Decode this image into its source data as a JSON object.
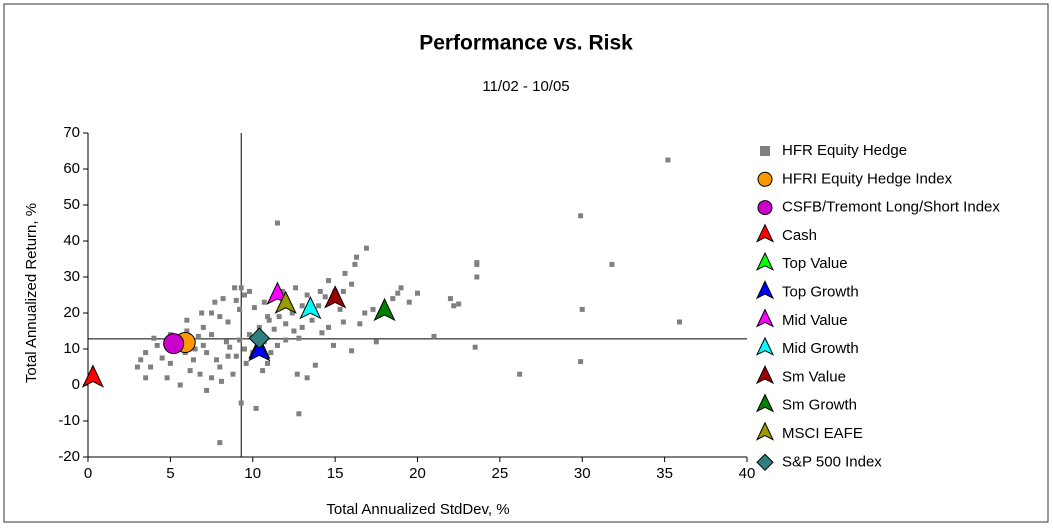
{
  "chart_data": {
    "type": "scatter",
    "title": "Performance vs. Risk",
    "subtitle": "11/02 - 10/05",
    "x_label": "Total Annualized StdDev, %",
    "y_label": "Total Annualized Return, %",
    "xlim": [
      0,
      40
    ],
    "xticks": [
      0,
      5,
      10,
      15,
      20,
      25,
      30,
      35,
      40
    ],
    "ylim": [
      -20,
      70
    ],
    "yticks": [
      -20,
      -10,
      0,
      10,
      20,
      30,
      40,
      50,
      60,
      70
    ],
    "reference_lines": {
      "x": 9.3,
      "y": 12.8
    },
    "legend": "right",
    "series": [
      {
        "name": "HFR Equity Hedge",
        "color": "#808080",
        "marker": "square",
        "x": [
          35.2,
          35.9,
          29.9,
          30,
          29.9,
          31.8,
          26.2,
          23.6,
          23.6,
          23.6,
          23.5,
          22.5,
          22,
          22.2,
          21,
          20,
          19,
          18.8,
          16.9,
          16.3,
          16.2,
          11.5,
          12.8,
          10.2,
          8,
          9.3,
          7.2,
          10.9,
          13.8,
          13.3,
          12.7,
          14,
          15.5,
          16.5,
          17.5,
          16,
          14.9,
          15,
          15.5,
          14.4,
          9,
          9.5,
          9.3,
          8.9,
          9.8,
          10.1,
          11,
          12,
          12.5,
          13,
          12.8,
          11.3,
          10.7,
          11.5,
          8,
          8.5,
          7.5,
          8.4,
          7,
          6.5,
          6,
          5,
          4,
          3.5,
          3.2,
          3,
          3.5,
          4.5,
          5,
          4.8,
          5.6,
          6.2,
          6.8,
          7.5,
          8,
          8.5,
          9,
          9.5,
          10,
          8.2,
          7.5,
          7,
          6.7,
          7.2,
          7.8,
          8.6,
          9.2,
          9.8,
          10.4,
          10.9,
          11.6,
          12.4,
          13,
          13.3,
          14.1,
          14.6,
          15.6,
          16,
          13.6,
          14.2,
          14.6,
          12,
          11.1,
          10.6,
          9.6,
          8.8,
          8.1,
          6.4,
          5.9,
          5.4,
          4.2,
          3.8,
          6,
          6.9,
          7.7,
          9.2,
          10.7,
          11.8,
          12.6,
          16.8,
          17.3,
          18.5,
          19.5,
          15.3
        ],
        "values": [
          62.5,
          17.5,
          47,
          21,
          6.5,
          33.5,
          3,
          33.5,
          34,
          30,
          10.5,
          22.5,
          24,
          22,
          13.5,
          25.5,
          27,
          25.5,
          38,
          35.5,
          33.5,
          45,
          -8,
          -6.5,
          -16,
          -5,
          -1.5,
          6,
          5.5,
          2,
          3,
          22,
          17.5,
          17,
          12,
          9.5,
          11,
          26,
          26,
          24.5,
          23.5,
          25,
          27,
          27,
          26,
          21.5,
          18,
          17,
          15,
          16,
          13,
          15.5,
          12,
          11,
          19,
          17.5,
          14,
          12,
          11,
          10,
          15,
          14,
          13,
          9,
          7,
          5,
          2,
          7.5,
          6,
          2,
          0,
          4,
          3,
          2,
          5,
          8,
          8,
          10,
          9,
          24,
          20,
          16,
          13.5,
          9,
          7,
          10.5,
          12.5,
          14,
          16,
          19,
          19,
          20,
          22,
          25,
          26,
          29,
          31,
          28,
          18,
          14.5,
          16,
          12.5,
          9,
          4,
          6,
          3,
          1,
          7,
          9,
          12,
          11,
          5,
          18,
          20,
          23,
          21,
          23,
          26,
          27,
          20,
          21,
          24,
          23,
          21
        ]
      },
      {
        "name": "HFRI Equity Hedge Index",
        "color": "#ff9900",
        "marker": "circle",
        "x": [
          5.9
        ],
        "values": [
          11.8
        ]
      },
      {
        "name": "CSFB/Tremont Long/Short Index",
        "color": "#cc00cc",
        "marker": "circle",
        "x": [
          5.2
        ],
        "values": [
          11.5
        ]
      },
      {
        "name": "Cash",
        "color": "#ff0000",
        "marker": "triangle",
        "x": [
          0.3
        ],
        "values": [
          1.5
        ]
      },
      {
        "name": "Top Value",
        "color": "#00ff00",
        "marker": "triangle",
        "x": [
          10.4
        ],
        "values": [
          9.5
        ]
      },
      {
        "name": "Top Growth",
        "color": "#0000ff",
        "marker": "triangle",
        "x": [
          10.4
        ],
        "values": [
          8.8
        ]
      },
      {
        "name": "Mid Value",
        "color": "#ff00ff",
        "marker": "triangle",
        "x": [
          11.5
        ],
        "values": [
          24.5
        ]
      },
      {
        "name": "Mid Growth",
        "color": "#00ffff",
        "marker": "triangle",
        "x": [
          13.5
        ],
        "values": [
          20.5
        ]
      },
      {
        "name": "Sm Value",
        "color": "#990000",
        "marker": "triangle",
        "x": [
          15
        ],
        "values": [
          23.5
        ]
      },
      {
        "name": "Sm Growth",
        "color": "#008000",
        "marker": "triangle",
        "x": [
          18
        ],
        "values": [
          20
        ]
      },
      {
        "name": "MSCI EAFE",
        "color": "#999900",
        "marker": "triangle",
        "x": [
          12
        ],
        "values": [
          22
        ]
      },
      {
        "name": "S&P 500 Index",
        "color": "#2f7f7f",
        "marker": "diamond",
        "x": [
          10.4
        ],
        "values": [
          13
        ]
      }
    ]
  }
}
